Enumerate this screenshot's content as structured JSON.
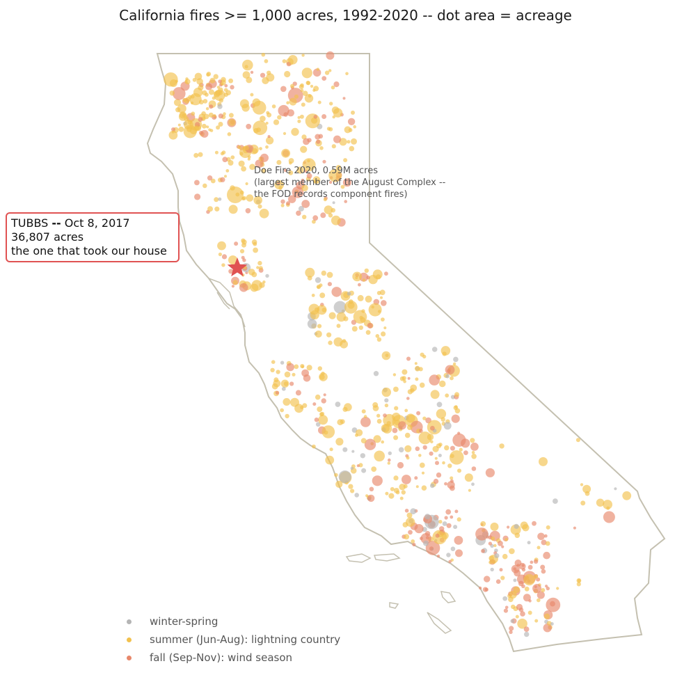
{
  "title": "California fires >= 1,000 acres, 1992-2020 -- dot area = acreage",
  "annotation_tubbs": {
    "line1_name": "TUBBS",
    "line1_sep": "--",
    "line1_date": "Oct 8, 2017",
    "line2": "36,807 acres",
    "line3": "the one that took our house",
    "marker_color": "#e05252"
  },
  "annotation_doe": {
    "line1": "Doe Fire 2020, 0.59M acres",
    "line2": "(largest member of the August Complex --",
    "line3": "the FOD records component fires)"
  },
  "legend": [
    {
      "label": "winter-spring",
      "color": "#b5b5b5"
    },
    {
      "label": "summer (Jun-Aug): lightning country",
      "color": "#f2c14e"
    },
    {
      "label": "fall (Sep-Nov): wind season",
      "color": "#e8886b"
    }
  ],
  "chart_data": {
    "type": "scatter",
    "title": "California fires >= 1,000 acres, 1992-2020 -- dot area = acreage",
    "encoding": "dot area = acreage",
    "outline_color": "#c4c0b0",
    "series": [
      {
        "name": "winter-spring",
        "color": "#b5b5b5"
      },
      {
        "name": "summer (Jun-Aug): lightning country",
        "color": "#f2c14e"
      },
      {
        "name": "fall (Sep-Nov): wind season",
        "color": "#e8886b"
      }
    ],
    "highlights": [
      {
        "name": "TUBBS",
        "date": "Oct 8, 2017",
        "acres": 36807
      },
      {
        "name": "Doe Fire",
        "year": 2020,
        "acres": 590000
      }
    ]
  }
}
